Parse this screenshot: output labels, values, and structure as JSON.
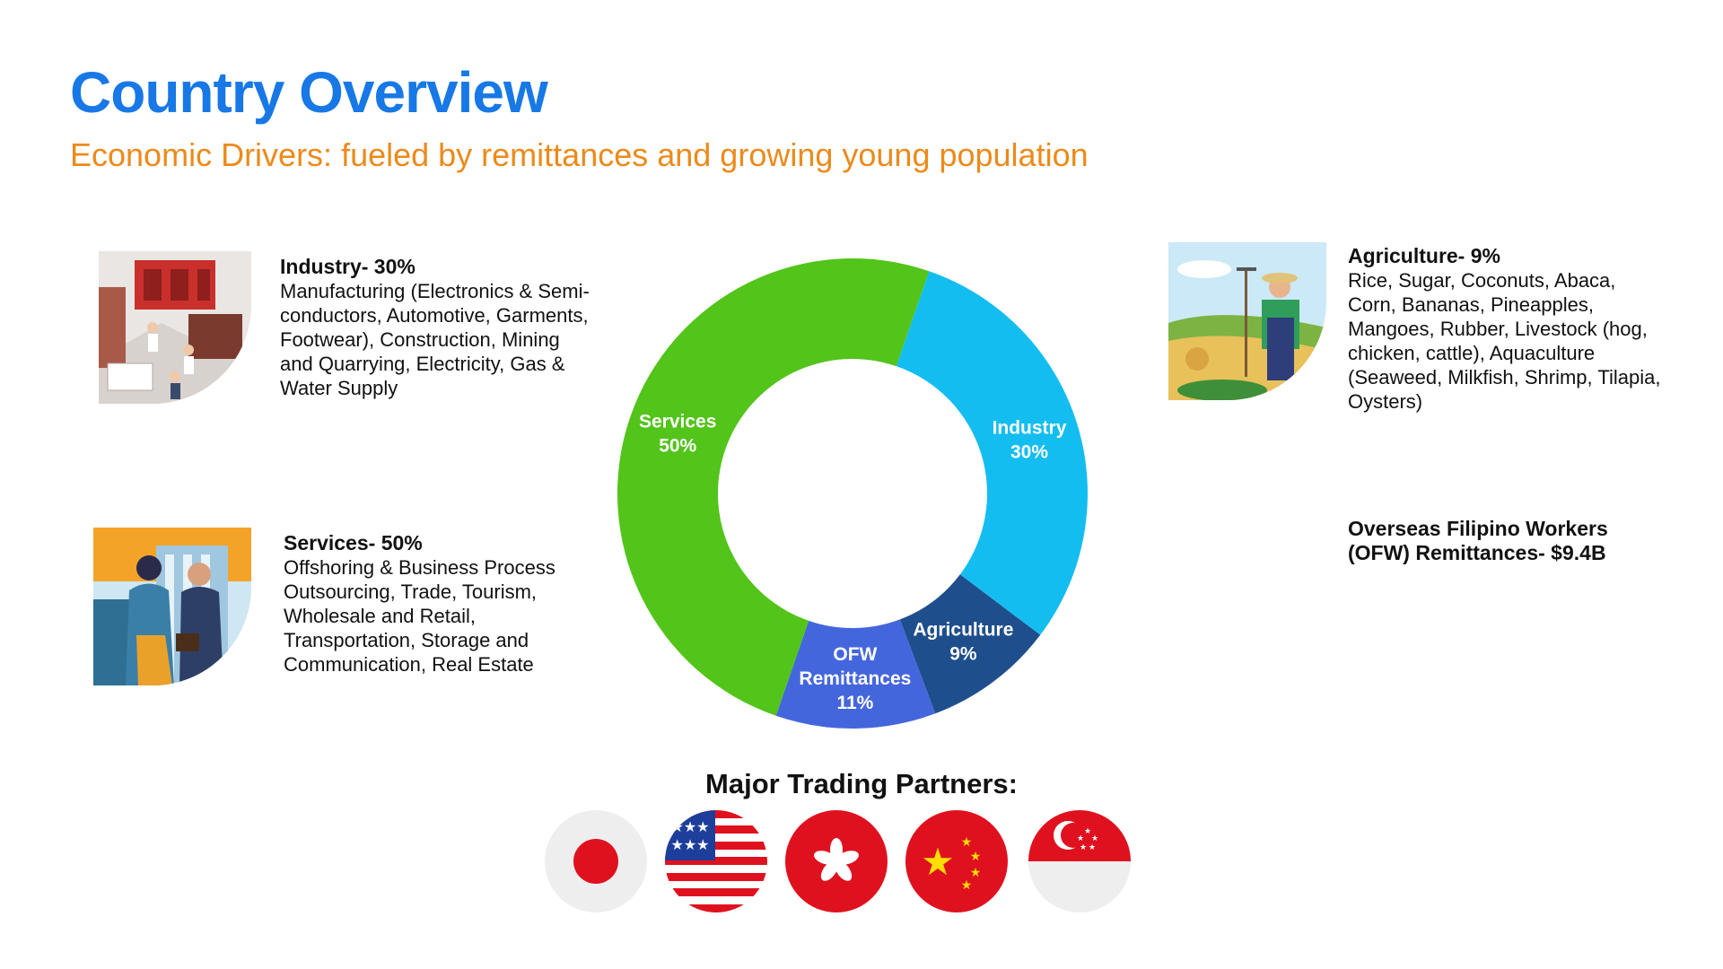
{
  "header": {
    "title": "Country Overview",
    "subtitle": "Economic Drivers: fueled by remittances and growing young population"
  },
  "sectors": {
    "industry": {
      "heading": "Industry- 30%",
      "lines": [
        "Manufacturing (Electronics & Semi-",
        "conductors, Automotive, Garments,",
        "Footwear), Construction, Mining",
        "and Quarrying, Electricity, Gas &",
        "Water Supply"
      ]
    },
    "services": {
      "heading": "Services- 50%",
      "lines": [
        "Offshoring & Business Process",
        "Outsourcing, Trade, Tourism,",
        "Wholesale and Retail,",
        "Transportation, Storage and",
        "Communication, Real Estate"
      ]
    },
    "agriculture": {
      "heading": "Agriculture- 9%",
      "lines": [
        "Rice, Sugar, Coconuts, Abaca,",
        "Corn, Bananas, Pineapples,",
        "Mangoes, Rubber, Livestock (hog,",
        "chicken, cattle), Aquaculture",
        "(Seaweed, Milkfish, Shrimp, Tilapia,",
        "Oysters)"
      ]
    },
    "ofw": {
      "lines": [
        "Overseas Filipino Workers",
        "(OFW) Remittances- $9.4B"
      ]
    }
  },
  "chart_data": {
    "type": "pie",
    "donut": true,
    "slices": [
      {
        "label": [
          "Industry",
          "30%"
        ],
        "value": 30,
        "color": "#14bdf0"
      },
      {
        "label": [
          "Agriculture",
          "9%"
        ],
        "value": 9,
        "color": "#1f4e8c"
      },
      {
        "label": [
          "OFW",
          "Remittances",
          "11%"
        ],
        "value": 11,
        "color": "#4466dd"
      },
      {
        "label": [
          "Services",
          "50%"
        ],
        "value": 50,
        "color": "#52c41a"
      }
    ],
    "start_angle_deg": -71
  },
  "partners": {
    "title": "Major Trading Partners:",
    "flags": [
      "japan-flag",
      "usa-flag",
      "hong-kong-flag",
      "china-flag",
      "singapore-flag"
    ]
  }
}
